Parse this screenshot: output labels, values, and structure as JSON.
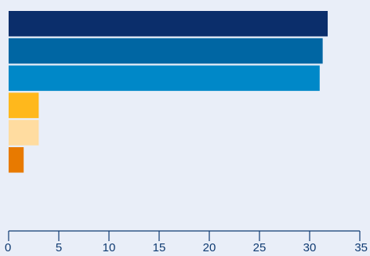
{
  "chart_data": {
    "type": "bar",
    "orientation": "horizontal",
    "title": "",
    "xlabel": "",
    "ylabel": "",
    "categories": [
      "",
      "",
      "",
      "",
      "",
      "",
      ""
    ],
    "values": [
      31.8,
      31.3,
      31.0,
      3.0,
      3.0,
      1.5,
      0.0
    ],
    "colors": [
      "#0b2e6b",
      "#0066a3",
      "#0088c8",
      "#ffb81c",
      "#ffdca0",
      "#e87a00",
      "#e9eef8"
    ],
    "xlim": [
      0,
      35
    ],
    "xticks": [
      0,
      5,
      10,
      15,
      20,
      25,
      30,
      35
    ],
    "tick_labels": [
      "0",
      "5",
      "10",
      "15",
      "20",
      "25",
      "30",
      "35"
    ],
    "grid": false,
    "legend": "none",
    "axis_color": "#0f3b72",
    "background": "#e9eef8"
  }
}
